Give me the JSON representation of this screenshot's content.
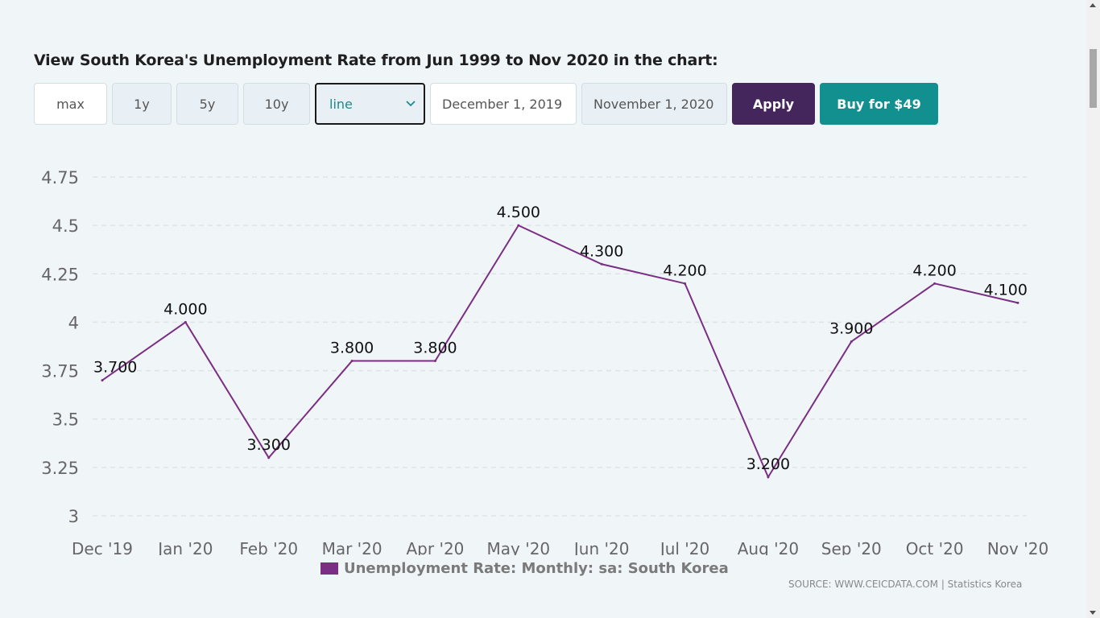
{
  "heading": "View South Korea's Unemployment Rate from Jun 1999 to Nov 2020 in the chart:",
  "range_buttons": [
    "max",
    "1y",
    "5y",
    "10y"
  ],
  "chart_type_select": {
    "value": "line"
  },
  "date_from": "December 1, 2019",
  "date_to": "November 1, 2020",
  "apply_label": "Apply",
  "buy_label": "Buy for $49",
  "source_text": "SOURCE: WWW.CEICDATA.COM | Statistics Korea",
  "colors": {
    "series": "#7a2e84",
    "apply": "#45265c",
    "buy": "#11908f"
  },
  "chart_data": {
    "type": "line",
    "categories": [
      "Dec '19",
      "Jan '20",
      "Feb '20",
      "Mar '20",
      "Apr '20",
      "May '20",
      "Jun '20",
      "Jul '20",
      "Aug '20",
      "Sep '20",
      "Oct '20",
      "Nov '20"
    ],
    "series": [
      {
        "name": "Unemployment Rate: Monthly: sa: South Korea",
        "values": [
          3.7,
          4.0,
          3.3,
          3.8,
          3.8,
          4.5,
          4.3,
          4.2,
          3.2,
          3.9,
          4.2,
          4.1
        ],
        "data_labels": [
          "3.700",
          "4.000",
          "3.300",
          "3.800",
          "3.800",
          "4.500",
          "4.300",
          "4.200",
          "3.200",
          "3.900",
          "4.200",
          "4.100"
        ]
      }
    ],
    "y_ticks": [
      3,
      3.25,
      3.5,
      3.75,
      4,
      4.25,
      4.5,
      4.75
    ],
    "y_tick_labels": [
      "3",
      "3.25",
      "3.5",
      "3.75",
      "4",
      "4.25",
      "4.5",
      "4.75"
    ],
    "ylim": [
      3,
      4.75
    ],
    "grid": true,
    "legend_position": "bottom"
  }
}
